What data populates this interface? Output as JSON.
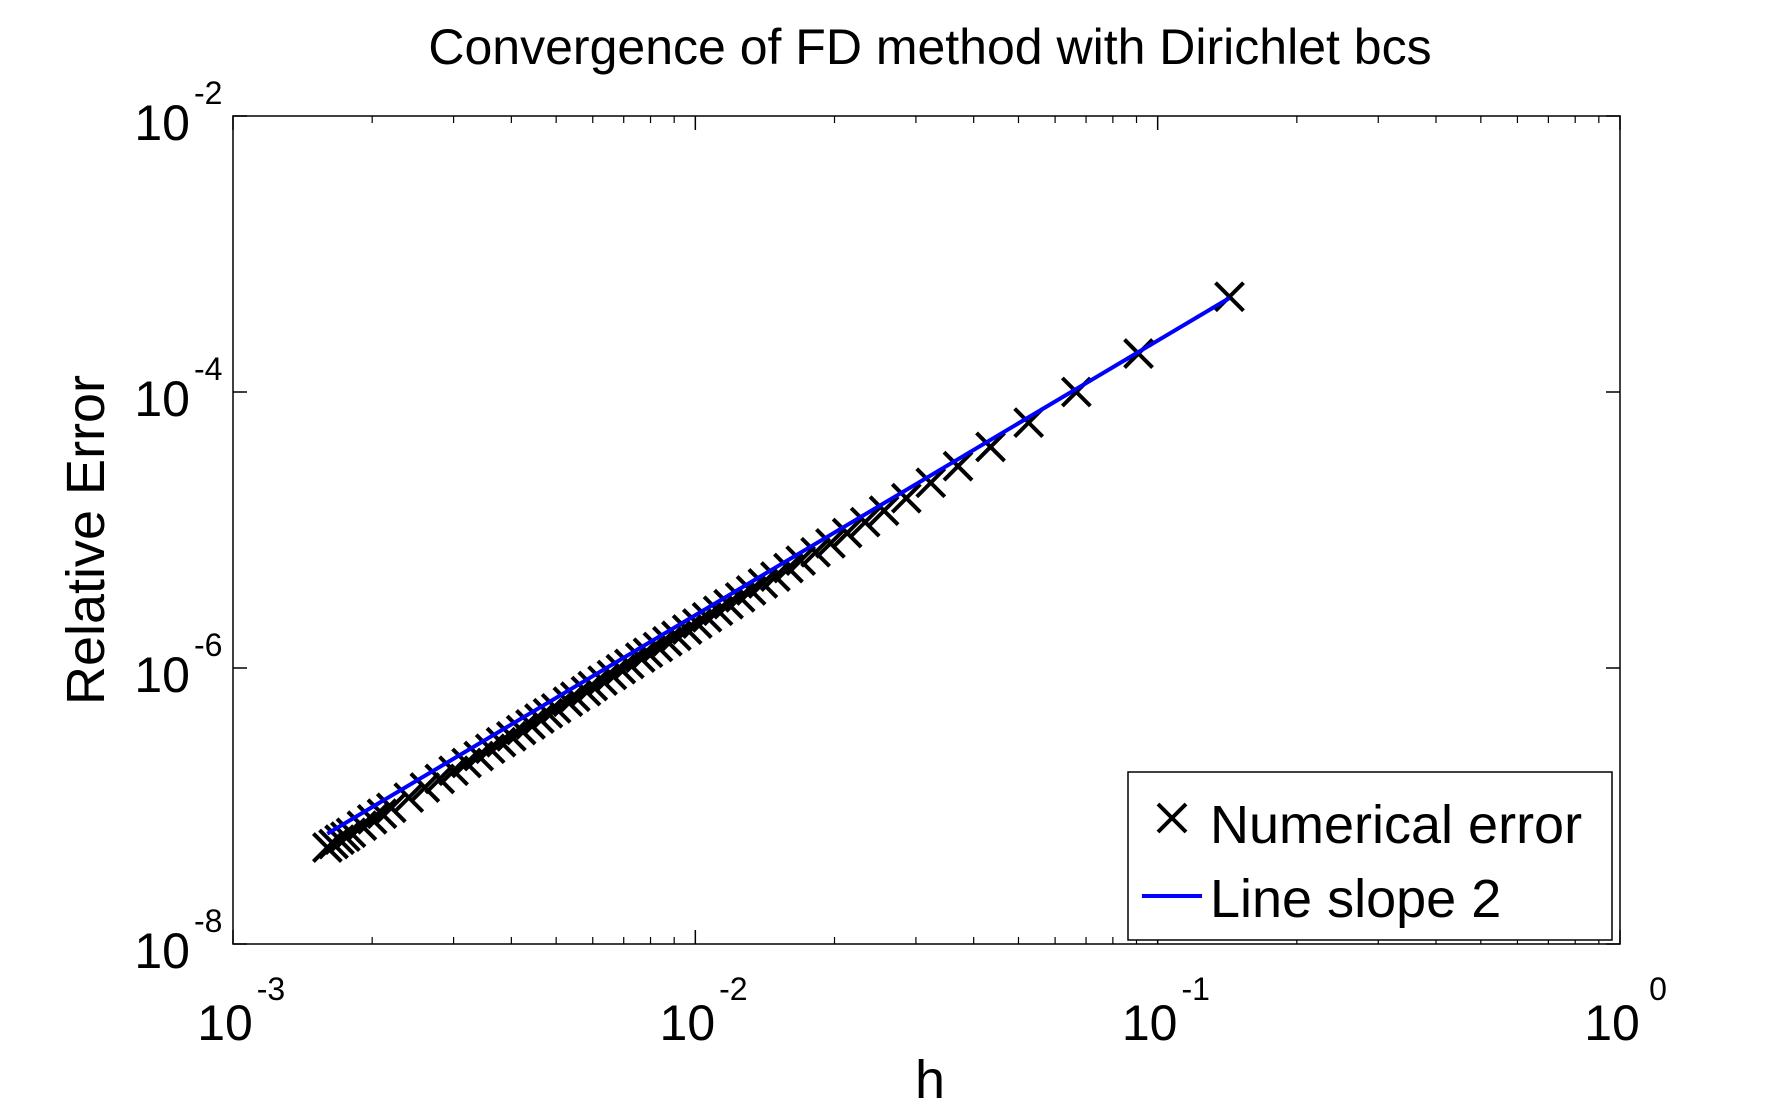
{
  "chart_data": {
    "type": "scatter",
    "title": "Convergence of FD method with Dirichlet bcs",
    "xlabel": "h",
    "ylabel": "Relative Error",
    "xscale": "log",
    "yscale": "log",
    "xlim": [
      0.001,
      1
    ],
    "ylim": [
      1e-08,
      0.01
    ],
    "xticks": [
      {
        "value": 0.001,
        "base": "10",
        "exp": "-3"
      },
      {
        "value": 0.01,
        "base": "10",
        "exp": "-2"
      },
      {
        "value": 0.1,
        "base": "10",
        "exp": "-1"
      },
      {
        "value": 1,
        "base": "10",
        "exp": "0"
      }
    ],
    "yticks": [
      {
        "value": 1e-08,
        "base": "10",
        "exp": "-8"
      },
      {
        "value": 1e-06,
        "base": "10",
        "exp": "-6"
      },
      {
        "value": 0.0001,
        "base": "10",
        "exp": "-4"
      },
      {
        "value": 0.01,
        "base": "10",
        "exp": "-2"
      }
    ],
    "grid": false,
    "legend": "bottom-right",
    "series": [
      {
        "name": "Numerical error",
        "kind": "markers",
        "marker": "x",
        "color": "#000000",
        "x": [
          0.143,
          0.0909,
          0.0667,
          0.0526,
          0.0435,
          0.037,
          0.0323,
          0.0286,
          0.0256,
          0.0233,
          0.0213,
          0.0196,
          0.0182,
          0.0169,
          0.0159,
          0.0149,
          0.014,
          0.0132,
          0.0125,
          0.0118,
          0.0112,
          0.0106,
          0.0101,
          0.0096,
          0.0091,
          0.0087,
          0.0083,
          0.0079,
          0.0076,
          0.0072,
          0.0069,
          0.0066,
          0.0063,
          0.006,
          0.0058,
          0.0055,
          0.0053,
          0.005,
          0.0048,
          0.0046,
          0.0044,
          0.0042,
          0.004,
          0.0038,
          0.0036,
          0.0034,
          0.0032,
          0.003,
          0.0028,
          0.0026,
          0.0024,
          0.0022,
          0.0021,
          0.002,
          0.0019,
          0.0018,
          0.00175,
          0.0017,
          0.00165,
          0.0016
        ],
        "y": [
          0.00049,
          0.00019,
          0.0001,
          6e-05,
          4e-05,
          2.9e-05,
          2.2e-05,
          1.7e-05,
          1.38e-05,
          1.14e-05,
          9.5e-06,
          8e-06,
          6.9e-06,
          6e-06,
          5.3e-06,
          4.6e-06,
          4.1e-06,
          3.65e-06,
          3.25e-06,
          2.9e-06,
          2.6e-06,
          2.33e-06,
          2.1e-06,
          1.9e-06,
          1.71e-06,
          1.56e-06,
          1.42e-06,
          1.29e-06,
          1.19e-06,
          1.07e-06,
          9.8e-07,
          8.9e-07,
          8.1e-07,
          7.4e-07,
          6.8e-07,
          6.2e-07,
          5.7e-07,
          5.1e-07,
          4.7e-07,
          4.3e-07,
          3.9e-07,
          3.55e-07,
          3.2e-07,
          2.9e-07,
          2.6e-07,
          2.3e-07,
          2.05e-07,
          1.8e-07,
          1.57e-07,
          1.36e-07,
          1.15e-07,
          9.7e-08,
          8.8e-08,
          8e-08,
          7.2e-08,
          6.4e-08,
          6e-08,
          5.7e-08,
          5.3e-08,
          5e-08
        ]
      },
      {
        "name": "Line slope 2",
        "kind": "line",
        "color": "#0000ff",
        "x": [
          0.0016,
          0.143
        ],
        "y": [
          6.3e-08,
          0.00048
        ]
      }
    ]
  }
}
